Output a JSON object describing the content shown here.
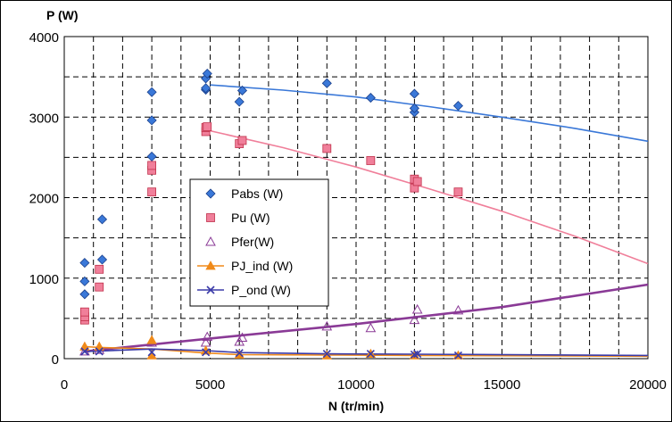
{
  "chart_data": {
    "type": "scatter",
    "title": "",
    "xlabel": "N (tr/min)",
    "ylabel": "P (W)",
    "xlim": [
      0,
      20000
    ],
    "ylim": [
      0,
      4000
    ],
    "x_ticks": [
      0,
      5000,
      10000,
      15000,
      20000
    ],
    "y_ticks": [
      0,
      1000,
      2000,
      3000,
      4000
    ],
    "x_tick_labels": [
      "0",
      "5000",
      "10000",
      "15000",
      "20000"
    ],
    "y_tick_labels": [
      "0",
      "1000",
      "2000",
      "3000",
      "4000"
    ],
    "grid": true,
    "legend_position": "center-left",
    "series": [
      {
        "name": "Pabs (W)",
        "marker": "diamond",
        "color": "#3a78d8",
        "points": [
          [
            700,
            800
          ],
          [
            700,
            960
          ],
          [
            700,
            1190
          ],
          [
            1300,
            1230
          ],
          [
            1300,
            1730
          ],
          [
            3000,
            2510
          ],
          [
            3000,
            2960
          ],
          [
            3000,
            3310
          ],
          [
            4850,
            3340
          ],
          [
            4850,
            3360
          ],
          [
            4850,
            3480
          ],
          [
            4900,
            3540
          ],
          [
            6000,
            3190
          ],
          [
            6100,
            3330
          ],
          [
            9000,
            3420
          ],
          [
            10500,
            3240
          ],
          [
            12000,
            3060
          ],
          [
            12000,
            3110
          ],
          [
            12000,
            3290
          ],
          [
            13500,
            3140
          ]
        ],
        "trend": [
          [
            5000,
            3400
          ],
          [
            7500,
            3335
          ],
          [
            10000,
            3250
          ],
          [
            12500,
            3130
          ],
          [
            15000,
            3000
          ],
          [
            17500,
            2860
          ],
          [
            20000,
            2700
          ]
        ]
      },
      {
        "name": "Pu (W)",
        "marker": "square",
        "color": "#f07f9a",
        "points": [
          [
            700,
            480
          ],
          [
            700,
            520
          ],
          [
            700,
            580
          ],
          [
            1200,
            890
          ],
          [
            1200,
            1110
          ],
          [
            3000,
            2070
          ],
          [
            3000,
            2340
          ],
          [
            3000,
            2400
          ],
          [
            4850,
            2820
          ],
          [
            4850,
            2870
          ],
          [
            4900,
            2880
          ],
          [
            6000,
            2670
          ],
          [
            6100,
            2710
          ],
          [
            9000,
            2610
          ],
          [
            10500,
            2460
          ],
          [
            12000,
            2120
          ],
          [
            12000,
            2230
          ],
          [
            12100,
            2200
          ],
          [
            13500,
            2070
          ]
        ],
        "trend": [
          [
            5000,
            2830
          ],
          [
            7500,
            2620
          ],
          [
            10000,
            2380
          ],
          [
            12500,
            2110
          ],
          [
            15000,
            1830
          ],
          [
            17500,
            1520
          ],
          [
            20000,
            1180
          ]
        ]
      },
      {
        "name": "Pfer(W)",
        "marker": "triangle",
        "color": "#8a3a96",
        "points": [
          [
            700,
            90
          ],
          [
            1200,
            110
          ],
          [
            3000,
            200
          ],
          [
            4850,
            200
          ],
          [
            4900,
            270
          ],
          [
            6000,
            210
          ],
          [
            6100,
            260
          ],
          [
            9000,
            400
          ],
          [
            10500,
            380
          ],
          [
            12000,
            480
          ],
          [
            12100,
            610
          ],
          [
            13500,
            600
          ]
        ],
        "trend": [
          [
            700,
            90
          ],
          [
            5000,
            250
          ],
          [
            10000,
            430
          ],
          [
            15000,
            640
          ],
          [
            20000,
            920
          ]
        ]
      },
      {
        "name": "PJ_ind (W)",
        "marker": "triangle-filled",
        "color": "#f08a1a",
        "points": [
          [
            700,
            150
          ],
          [
            1200,
            150
          ],
          [
            3000,
            230
          ],
          [
            3000,
            40
          ],
          [
            4850,
            100
          ],
          [
            6000,
            50
          ],
          [
            9000,
            40
          ],
          [
            10500,
            60
          ],
          [
            12000,
            40
          ],
          [
            13500,
            40
          ]
        ],
        "trend": [
          [
            700,
            150
          ],
          [
            1200,
            140
          ],
          [
            3000,
            120
          ],
          [
            4850,
            70
          ],
          [
            6000,
            50
          ],
          [
            9000,
            45
          ],
          [
            12000,
            40
          ],
          [
            20000,
            30
          ]
        ]
      },
      {
        "name": "P_ond (W)",
        "marker": "x",
        "color": "#3a3aa8",
        "points": [
          [
            700,
            90
          ],
          [
            1200,
            90
          ],
          [
            3000,
            80
          ],
          [
            4850,
            80
          ],
          [
            6000,
            70
          ],
          [
            9000,
            60
          ],
          [
            10500,
            60
          ],
          [
            12000,
            50
          ],
          [
            12100,
            60
          ],
          [
            13500,
            40
          ]
        ],
        "trend": [
          [
            700,
            90
          ],
          [
            1200,
            95
          ],
          [
            3000,
            120
          ],
          [
            4850,
            100
          ],
          [
            6000,
            75
          ],
          [
            9000,
            60
          ],
          [
            12000,
            55
          ],
          [
            20000,
            40
          ]
        ]
      }
    ]
  }
}
